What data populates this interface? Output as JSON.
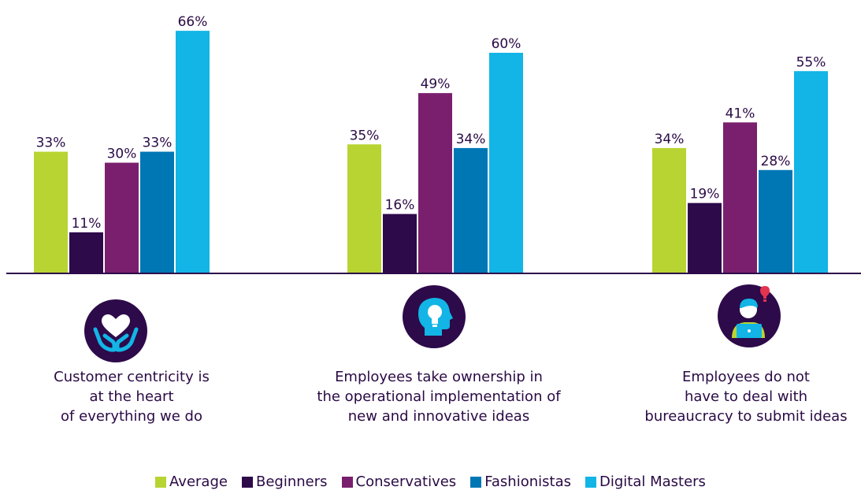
{
  "chart_data": {
    "type": "bar",
    "categories": [
      "Customer centricity is\nat the heart\nof everything we do",
      "Employees take ownership in\nthe operational implementation of\nnew and innovative ideas",
      "Employees do not\nhave to deal with\nbureaucracy to submit ideas"
    ],
    "series": [
      {
        "name": "Average",
        "color": "#b8d432",
        "values": [
          33,
          35,
          34
        ],
        "labels": [
          "33%",
          "35%",
          "34%"
        ]
      },
      {
        "name": "Beginners",
        "color": "#2d0a4a",
        "values": [
          11,
          16,
          19
        ],
        "labels": [
          "11%",
          "16%",
          "19%"
        ]
      },
      {
        "name": "Conservatives",
        "color": "#7a1f6e",
        "values": [
          30,
          49,
          41
        ],
        "labels": [
          "30%",
          "49%",
          "41%"
        ]
      },
      {
        "name": "Fashionistas",
        "color": "#0077b5",
        "values": [
          33,
          34,
          28
        ],
        "labels": [
          "33%",
          "34%",
          "28%"
        ]
      },
      {
        "name": "Digital Masters",
        "color": "#12b5e5",
        "values": [
          66,
          60,
          55
        ],
        "labels": [
          "66%",
          "60%",
          "55%"
        ]
      }
    ],
    "ylim": [
      0,
      70
    ],
    "legend_position": "bottom-center"
  },
  "icons": [
    "heart-hands-icon",
    "head-lightbulb-icon",
    "person-laptop-idea-icon"
  ],
  "colors": {
    "icon_bg": "#2d0a4a",
    "accent": "#12b5e5",
    "alert": "#e2334f"
  }
}
